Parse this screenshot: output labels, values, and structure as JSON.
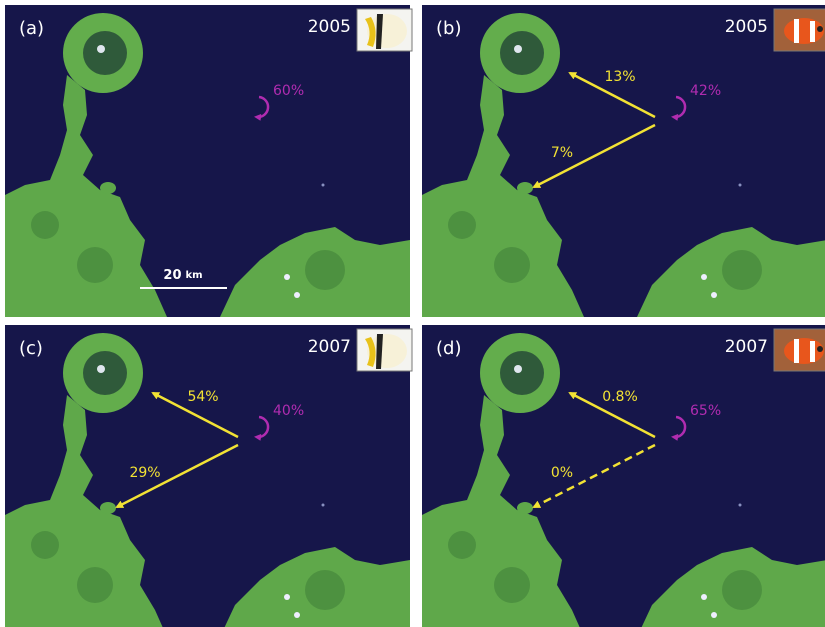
{
  "panels": [
    {
      "label": "(a)",
      "year": "2005",
      "self_recruitment": "60%",
      "arrows": []
    },
    {
      "label": "(b)",
      "year": "2005",
      "self_recruitment": "42%",
      "arrows": [
        {
          "label": "13%"
        },
        {
          "label": "7%"
        }
      ]
    },
    {
      "label": "(c)",
      "year": "2007",
      "self_recruitment": "40%",
      "arrows": [
        {
          "label": "54%"
        },
        {
          "label": "29%"
        }
      ]
    },
    {
      "label": "(d)",
      "year": "2007",
      "self_recruitment": "65%",
      "arrows": [
        {
          "label": "0.8%"
        },
        {
          "label": "0%",
          "style": "dashed"
        }
      ]
    }
  ],
  "scale_bar": {
    "value": "20",
    "unit": "km"
  }
}
